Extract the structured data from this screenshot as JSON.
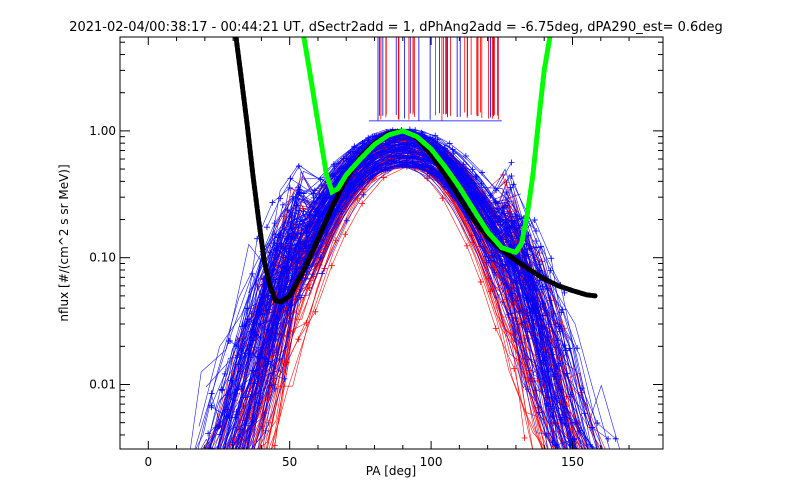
{
  "chart_data": {
    "type": "line",
    "title": "2021-02-04/00:38:17 - 00:44:21 UT, dSectr2add = 1, dPhAng2add = -6.75deg, dPA290_est=   0.6deg",
    "xlabel": "PA [deg]",
    "ylabel": "nflux [#/(cm^2 s sr MeV)]",
    "xlim": [
      -10,
      182
    ],
    "ylim": [
      0.0031,
      5.5
    ],
    "y_scale": "log",
    "x_ticks": [
      0,
      50,
      100,
      150
    ],
    "x_tick_labels": [
      "0",
      "50",
      "100",
      "150"
    ],
    "y_ticks": [
      0.01,
      0.1,
      1.0
    ],
    "y_tick_labels": [
      "0.01",
      "0.10",
      "1.00"
    ],
    "grid": false,
    "legend": "none",
    "colors": {
      "red_traces": "#ff0000",
      "blue_traces": "#0000ff",
      "black_fit": "#000000",
      "green_fit": "#00ff00"
    },
    "series": [
      {
        "color": "#000000",
        "style": "thick-dashed",
        "x": [
          31,
          33,
          35,
          37,
          39,
          41,
          43,
          45,
          47,
          50,
          55,
          60,
          65,
          70,
          75,
          80,
          85,
          90,
          95,
          100,
          105,
          110,
          115,
          120,
          125,
          130,
          135,
          140,
          145,
          150,
          155,
          158
        ],
        "y": [
          5.5,
          2.5,
          1.1,
          0.45,
          0.2,
          0.095,
          0.06,
          0.046,
          0.045,
          0.05,
          0.08,
          0.14,
          0.25,
          0.42,
          0.62,
          0.8,
          0.95,
          1.0,
          0.88,
          0.65,
          0.45,
          0.3,
          0.2,
          0.145,
          0.115,
          0.095,
          0.08,
          0.068,
          0.06,
          0.055,
          0.051,
          0.05
        ]
      },
      {
        "color": "#00ff00",
        "style": "thick-dashed",
        "x": [
          55,
          57,
          59,
          61,
          63,
          65,
          67,
          70,
          75,
          80,
          85,
          90,
          95,
          100,
          105,
          110,
          115,
          120,
          125,
          130,
          132,
          134,
          136,
          138,
          140,
          142
        ],
        "y": [
          5.5,
          3.0,
          1.6,
          0.85,
          0.45,
          0.33,
          0.35,
          0.45,
          0.6,
          0.78,
          0.93,
          1.0,
          0.9,
          0.72,
          0.52,
          0.36,
          0.24,
          0.16,
          0.12,
          0.11,
          0.13,
          0.22,
          0.45,
          1.2,
          3.0,
          5.5
        ]
      }
    ],
    "trace_families": [
      {
        "color": "#ff0000",
        "count": 90,
        "peak_x": 90,
        "peak_y": 0.95,
        "width": 22
      },
      {
        "color": "#0000ff",
        "count": 120,
        "peak_x": 90,
        "peak_y": 0.95,
        "width": 24
      }
    ]
  }
}
